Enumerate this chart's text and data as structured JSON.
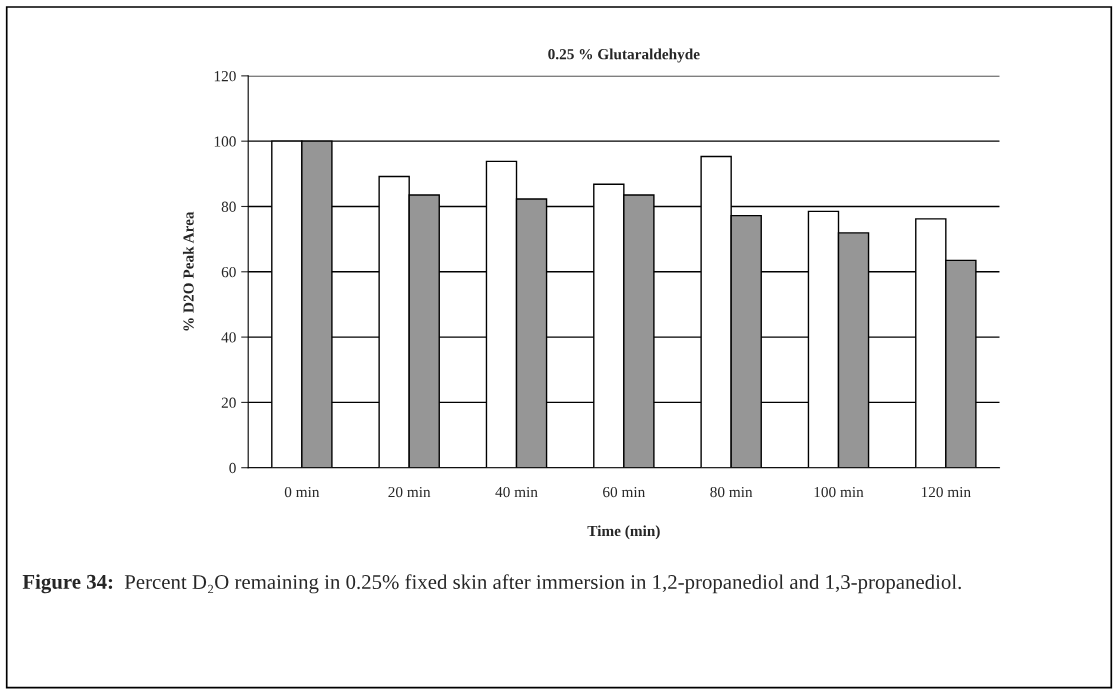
{
  "chart_data": {
    "type": "bar",
    "title": "0.25 % Glutaraldehyde",
    "xlabel": "Time (min)",
    "ylabel": "% D2O Peak Area",
    "categories": [
      "0 min",
      "20 min",
      "40 min",
      "60 min",
      "80 min",
      "100 min",
      "120 min"
    ],
    "series": [
      {
        "color": "#ffffff",
        "values": [
          100,
          89.2,
          93.8,
          86.8,
          95.3,
          78.5,
          76.2
        ]
      },
      {
        "color": "#969696",
        "values": [
          100,
          83.5,
          82.3,
          83.5,
          77.2,
          71.9,
          63.5
        ]
      }
    ],
    "ylim": [
      0,
      120
    ],
    "yticks": [
      0,
      20,
      40,
      60,
      80,
      100,
      120
    ],
    "grid": "y",
    "legend": false,
    "annotations": [
      "Figure 34:",
      "Percent D₂O remaining in 0.25% fixed skin after immersion in 1,2-propanediol and 1,3-propanediol."
    ]
  }
}
